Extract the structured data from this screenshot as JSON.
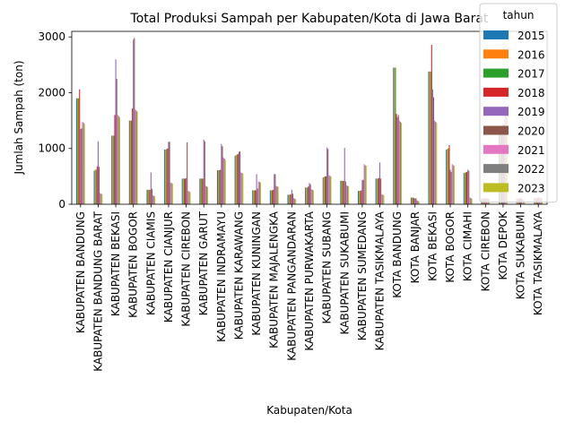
{
  "chart_data": {
    "type": "bar",
    "title": "Total Produksi Sampah per Kabupaten/Kota di Jawa Barat",
    "xlabel": "Kabupaten/Kota",
    "ylabel": "Jumlah Sampah (ton)",
    "ylim": [
      0,
      3100
    ],
    "yticks": [
      0,
      1000,
      2000,
      3000
    ],
    "legend_title": "tahun",
    "legend_position": "top-right",
    "grid": false,
    "categories": [
      "KABUPATEN BANDUNG",
      "KABUPATEN BANDUNG BARAT",
      "KABUPATEN BEKASI",
      "KABUPATEN BOGOR",
      "KABUPATEN CIAMIS",
      "KABUPATEN CIANJUR",
      "KABUPATEN CIREBON",
      "KABUPATEN GARUT",
      "KABUPATEN INDRAMAYU",
      "KABUPATEN KARAWANG",
      "KABUPATEN KUNINGAN",
      "KABUPATEN MAJALENGKA",
      "KABUPATEN PANGANDARAN",
      "KABUPATEN PURWAKARTA",
      "KABUPATEN SUBANG",
      "KABUPATEN SUKABUMI",
      "KABUPATEN SUMEDANG",
      "KABUPATEN TASIKMALAYA",
      "KOTA BANDUNG",
      "KOTA BANJAR",
      "KOTA BEKASI",
      "KOTA BOGOR",
      "KOTA CIMAHI",
      "KOTA CIREBON",
      "KOTA DEPOK",
      "KOTA SUKABUMI",
      "KOTA TASIKMALAYA"
    ],
    "series": [
      {
        "name": "2015",
        "color": "#1f77b4",
        "values": [
          1900,
          600,
          1230,
          1500,
          260,
          980,
          460,
          460,
          610,
          870,
          250,
          250,
          170,
          300,
          480,
          420,
          240,
          460,
          2450,
          120,
          2380,
          980,
          560,
          100,
          1300,
          100,
          110
        ]
      },
      {
        "name": "2016",
        "color": "#ff7f0e",
        "values": [
          1900,
          620,
          1230,
          1500,
          260,
          980,
          460,
          460,
          610,
          880,
          250,
          250,
          170,
          300,
          490,
          420,
          240,
          460,
          2450,
          120,
          2380,
          990,
          570,
          100,
          1300,
          100,
          110
        ]
      },
      {
        "name": "2017",
        "color": "#2ca02c",
        "values": [
          1900,
          620,
          1230,
          1500,
          260,
          990,
          460,
          460,
          610,
          890,
          250,
          250,
          170,
          300,
          500,
          420,
          240,
          460,
          2450,
          120,
          2380,
          1000,
          570,
          100,
          1300,
          100,
          110
        ]
      },
      {
        "name": "2018",
        "color": "#d62728",
        "values": [
          2060,
          680,
          1600,
          1720,
          260,
          1000,
          460,
          460,
          620,
          900,
          250,
          260,
          180,
          320,
          500,
          420,
          250,
          470,
          1620,
          110,
          2860,
          1060,
          580,
          100,
          1400,
          100,
          110
        ]
      },
      {
        "name": "2019",
        "color": "#9467bd",
        "values": [
          1350,
          1130,
          2600,
          2950,
          570,
          1120,
          470,
          1160,
          1080,
          940,
          540,
          540,
          260,
          380,
          1020,
          1010,
          430,
          750,
          1560,
          100,
          2060,
          620,
          620,
          120,
          1450,
          120,
          140
        ]
      },
      {
        "name": "2020",
        "color": "#8c564b",
        "values": [
          1360,
          670,
          2250,
          2980,
          280,
          1120,
          1110,
          1130,
          1040,
          950,
          280,
          540,
          190,
          360,
          990,
          410,
          440,
          460,
          1600,
          110,
          1920,
          580,
          600,
          100,
          1430,
          100,
          110
        ]
      },
      {
        "name": "2021",
        "color": "#e377c2",
        "values": [
          1480,
          200,
          1600,
          1700,
          160,
          390,
          240,
          330,
          840,
          570,
          410,
          330,
          110,
          270,
          520,
          340,
          720,
          180,
          1500,
          70,
          1500,
          720,
          120,
          110,
          1640,
          90,
          120
        ]
      },
      {
        "name": "2022",
        "color": "#7f7f7f",
        "values": [
          1460,
          190,
          1580,
          1680,
          150,
          380,
          230,
          320,
          820,
          560,
          400,
          320,
          100,
          260,
          510,
          330,
          700,
          170,
          1480,
          60,
          1480,
          700,
          110,
          100,
          1620,
          80,
          110
        ]
      },
      {
        "name": "2023",
        "color": "#bcbd22",
        "values": [
          1440,
          180,
          1560,
          1660,
          140,
          370,
          220,
          310,
          800,
          550,
          390,
          310,
          90,
          250,
          500,
          320,
          690,
          160,
          1460,
          50,
          1460,
          690,
          100,
          90,
          1600,
          70,
          100
        ]
      }
    ]
  }
}
